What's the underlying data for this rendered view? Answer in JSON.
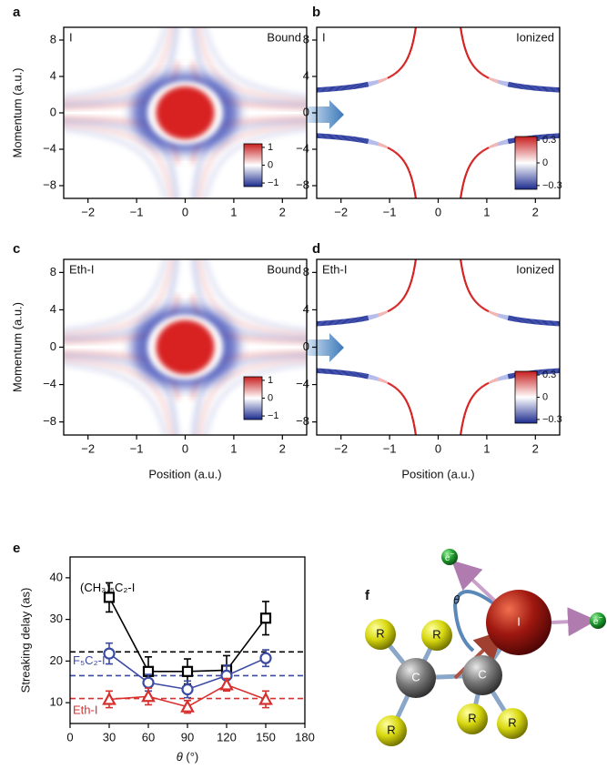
{
  "chart_data": [
    {
      "type": "heatmap",
      "panel": "a",
      "label": "I",
      "state": "Bound",
      "y_label": "Momentum (a.u.)",
      "xlim": [
        -2.5,
        2.5
      ],
      "ylim": [
        -9.4,
        9.4
      ],
      "xticks": [
        {
          "value": -2,
          "label": "−2"
        },
        {
          "value": -1,
          "label": "−1"
        },
        0,
        1,
        2
      ],
      "yticks": [
        8,
        4,
        0,
        {
          "value": -4,
          "label": "−4"
        },
        {
          "value": -8,
          "label": "−8"
        }
      ],
      "colorbar": {
        "lim": [
          -1.2,
          1.2
        ],
        "ticks": [
          1,
          0,
          {
            "value": -1,
            "label": "−1"
          }
        ]
      }
    },
    {
      "type": "scatter",
      "panel": "b",
      "label": "I",
      "state": "Ionized",
      "xlim": [
        -2.5,
        2.5
      ],
      "ylim": [
        -9.4,
        9.4
      ],
      "xticks": [
        {
          "value": -2,
          "label": "−2"
        },
        {
          "value": -1,
          "label": "−1"
        },
        0,
        1,
        2
      ],
      "yticks": [
        8,
        4,
        0,
        {
          "value": -4,
          "label": "−4"
        },
        {
          "value": -8,
          "label": "−8"
        }
      ],
      "colorbar": {
        "lim": [
          -0.35,
          0.35
        ],
        "ticks": [
          0.3,
          0,
          {
            "value": -0.3,
            "label": "−0.3"
          }
        ]
      }
    },
    {
      "type": "heatmap",
      "panel": "c",
      "label": "Eth-I",
      "state": "Bound",
      "y_label": "Momentum (a.u.)",
      "x_label": "Position (a.u.)",
      "xlim": [
        -2.5,
        2.5
      ],
      "ylim": [
        -9.4,
        9.4
      ],
      "xticks": [
        {
          "value": -2,
          "label": "−2"
        },
        {
          "value": -1,
          "label": "−1"
        },
        0,
        1,
        2
      ],
      "yticks": [
        8,
        4,
        0,
        {
          "value": -4,
          "label": "−4"
        },
        {
          "value": -8,
          "label": "−8"
        }
      ],
      "colorbar": {
        "lim": [
          -1.2,
          1.2
        ],
        "ticks": [
          1,
          0,
          {
            "value": -1,
            "label": "−1"
          }
        ]
      }
    },
    {
      "type": "scatter",
      "panel": "d",
      "label": "Eth-I",
      "state": "Ionized",
      "x_label": "Position (a.u.)",
      "xlim": [
        -2.5,
        2.5
      ],
      "ylim": [
        -9.4,
        9.4
      ],
      "xticks": [
        {
          "value": -2,
          "label": "−2"
        },
        {
          "value": -1,
          "label": "−1"
        },
        0,
        1,
        2
      ],
      "yticks": [
        8,
        4,
        0,
        {
          "value": -4,
          "label": "−4"
        },
        {
          "value": -8,
          "label": "−8"
        }
      ],
      "colorbar": {
        "lim": [
          -0.35,
          0.35
        ],
        "ticks": [
          0.3,
          0,
          {
            "value": -0.3,
            "label": "−0.3"
          }
        ]
      }
    },
    {
      "type": "errorline",
      "panel": "e",
      "y_label": "Streaking delay (as)",
      "x_label_symbol": "θ",
      "x_label_unit": " (°)",
      "xlim": [
        0,
        180
      ],
      "ylim": [
        5,
        45
      ],
      "xticks": [
        0,
        30,
        60,
        90,
        120,
        150,
        180
      ],
      "yticks": [
        10,
        20,
        30,
        40
      ],
      "x": [
        30,
        60,
        90,
        120,
        150
      ],
      "series": [
        {
          "name": "(CH₃)₅C₂-I",
          "color": "#000000",
          "marker": "square",
          "values": [
            35.3,
            17.5,
            17.5,
            17.8,
            30.3
          ],
          "errors": [
            3.5,
            3.5,
            3,
            3.5,
            4
          ],
          "ref": 22.2
        },
        {
          "name": "F₅C₂-I",
          "color": "#3b4ba3",
          "marker": "circle",
          "values": [
            21.8,
            14.8,
            13.2,
            16.5,
            20.7
          ],
          "errors": [
            2.5,
            2,
            2,
            2.5,
            2
          ],
          "ref": 16.5
        },
        {
          "name": "Eth-I",
          "color": "#d8302e",
          "marker": "triangle",
          "values": [
            10.8,
            11.5,
            9.0,
            14.3,
            10.8
          ],
          "errors": [
            2,
            2,
            1.5,
            1.5,
            2
          ],
          "ref": 11
        }
      ]
    }
  ],
  "diagram": {
    "panel": "f",
    "iodine": "I",
    "carbon": "C",
    "substituent": "R",
    "electron": "e",
    "charge": "−",
    "angle": "θ"
  }
}
